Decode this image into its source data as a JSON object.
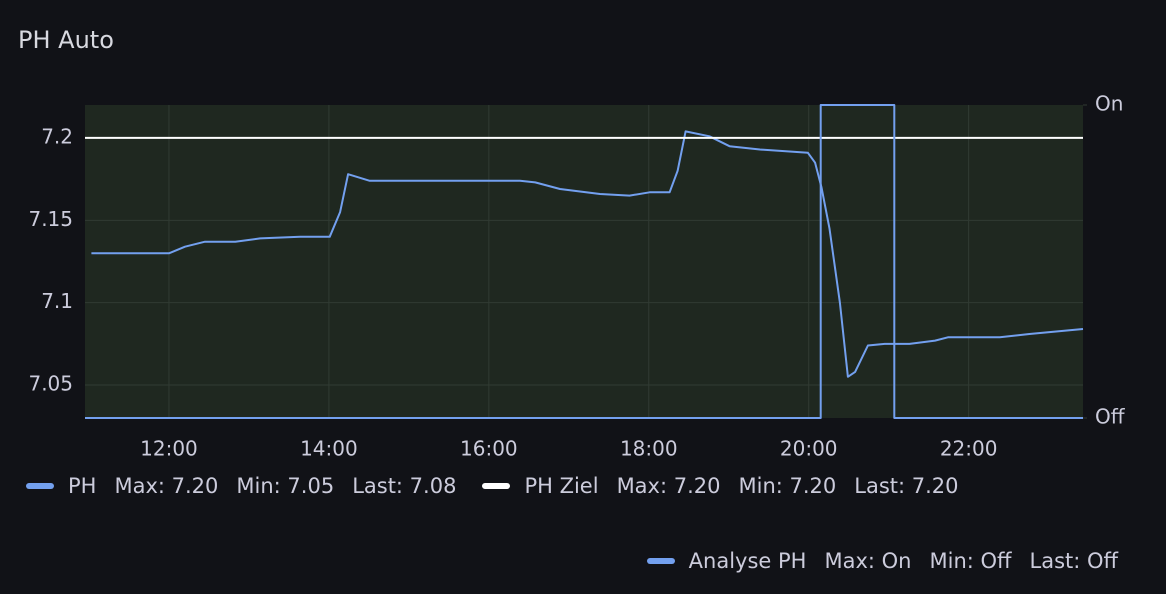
{
  "chart_data": {
    "type": "line",
    "title": "PH Auto",
    "xlim": [
      10.95,
      23.43
    ],
    "xticks": [
      {
        "value": 12,
        "label": "12:00"
      },
      {
        "value": 14,
        "label": "14:00"
      },
      {
        "value": 16,
        "label": "16:00"
      },
      {
        "value": 18,
        "label": "18:00"
      },
      {
        "value": 20,
        "label": "20:00"
      },
      {
        "value": 22,
        "label": "22:00"
      }
    ],
    "ylim": [
      7.03,
      7.22
    ],
    "yticks": [
      7.05,
      7.1,
      7.15,
      7.2
    ],
    "y2lim": [
      0,
      1
    ],
    "y2ticks": [
      {
        "value": 0,
        "label": "Off"
      },
      {
        "value": 1,
        "label": "On"
      }
    ],
    "grid": true,
    "series": [
      {
        "name": "PH",
        "color": "#73a0ef",
        "x": [
          11.03,
          12,
          12.2,
          12.45,
          12.83,
          13.14,
          13.64,
          14.01,
          14.14,
          14.24,
          14.51,
          14.89,
          16.39,
          16.58,
          16.89,
          17.39,
          17.76,
          18.01,
          18.26,
          18.36,
          18.46,
          18.76,
          19.01,
          19.39,
          19.99,
          20.08,
          20.16,
          20.26,
          20.39,
          20.49,
          20.58,
          20.74,
          20.95,
          21.26,
          21.58,
          21.74,
          22.39,
          22.76,
          23.43
        ],
        "values": [
          7.13,
          7.13,
          7.134,
          7.137,
          7.137,
          7.139,
          7.14,
          7.14,
          7.155,
          7.178,
          7.174,
          7.174,
          7.174,
          7.173,
          7.169,
          7.166,
          7.165,
          7.167,
          7.167,
          7.18,
          7.204,
          7.201,
          7.195,
          7.193,
          7.191,
          7.185,
          7.17,
          7.145,
          7.1,
          7.055,
          7.058,
          7.074,
          7.075,
          7.075,
          7.077,
          7.079,
          7.079,
          7.081,
          7.084
        ],
        "stats": [
          "Max: 7.20",
          "Min: 7.05",
          "Last: 7.08"
        ]
      },
      {
        "name": "PH Ziel",
        "color": "#ffffff",
        "x": [
          10.95,
          23.43
        ],
        "values": [
          7.2,
          7.2
        ],
        "stats": [
          "Max: 7.20",
          "Min: 7.20",
          "Last: 7.20"
        ]
      },
      {
        "name": "Analyse PH",
        "color": "#73a0ef",
        "axis": "y2",
        "x": [
          10.95,
          20.15,
          20.15,
          21.07,
          21.07,
          23.43
        ],
        "values": [
          0,
          0,
          1,
          1,
          0,
          0
        ],
        "stats": [
          "Max: On",
          "Min: Off",
          "Last: Off"
        ]
      }
    ]
  }
}
